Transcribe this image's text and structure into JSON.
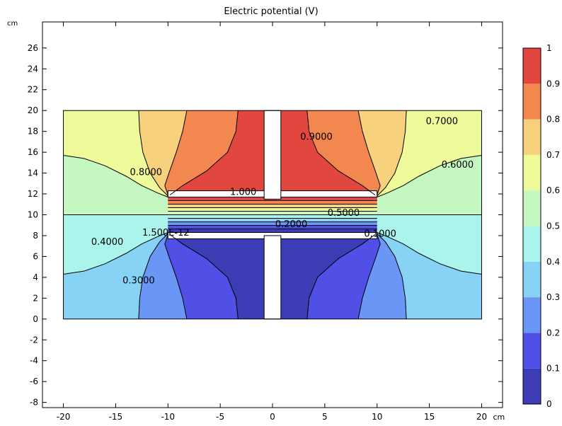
{
  "chart_data": {
    "type": "heatmap",
    "title": "Electric potential (V)",
    "x_unit": "cm",
    "y_unit": "cm",
    "xlim": [
      -22,
      22
    ],
    "ylim": [
      -8.5,
      28.5
    ],
    "x_ticks": [
      "-20",
      "-15",
      "-10",
      "-5",
      "0",
      "5",
      "10",
      "15",
      "20"
    ],
    "y_ticks": [
      "-8",
      "-6",
      "-4",
      "-2",
      "0",
      "2",
      "4",
      "6",
      "8",
      "10",
      "12",
      "14",
      "16",
      "18",
      "20",
      "22",
      "24",
      "26"
    ],
    "colorbar": {
      "range": [
        0,
        1
      ],
      "ticks": [
        "0",
        "0.1",
        "0.2",
        "0.3",
        "0.4",
        "0.5",
        "0.6",
        "0.7",
        "0.8",
        "0.9",
        "1"
      ],
      "bands": [
        {
          "from": 0.0,
          "to": 0.1,
          "color": "#3c3cb4"
        },
        {
          "from": 0.1,
          "to": 0.2,
          "color": "#5050e6"
        },
        {
          "from": 0.2,
          "to": 0.3,
          "color": "#6a96f6"
        },
        {
          "from": 0.3,
          "to": 0.4,
          "color": "#87d3f6"
        },
        {
          "from": 0.4,
          "to": 0.5,
          "color": "#abf4eb"
        },
        {
          "from": 0.5,
          "to": 0.6,
          "color": "#c5f7c0"
        },
        {
          "from": 0.6,
          "to": 0.7,
          "color": "#effa9a"
        },
        {
          "from": 0.7,
          "to": 0.8,
          "color": "#f7d17c"
        },
        {
          "from": 0.8,
          "to": 0.9,
          "color": "#f2874f"
        },
        {
          "from": 0.9,
          "to": 1.0,
          "color": "#e2473f"
        }
      ]
    },
    "contour_labels": [
      {
        "text": "0.7000",
        "x": 16.2,
        "y": 18.7
      },
      {
        "text": "0.9000",
        "x": 4.2,
        "y": 17.2
      },
      {
        "text": "0.6000",
        "x": 17.7,
        "y": 14.5
      },
      {
        "text": "0.8000",
        "x": -12.1,
        "y": 13.8
      },
      {
        "text": "1.000",
        "x": -2.8,
        "y": 11.9
      },
      {
        "text": "0.5000",
        "x": 6.8,
        "y": 9.9
      },
      {
        "text": "0.2000",
        "x": 1.8,
        "y": 8.8
      },
      {
        "text": "1.500E-12",
        "x": -10.2,
        "y": 8.0
      },
      {
        "text": "0.1000",
        "x": 10.3,
        "y": 7.9
      },
      {
        "text": "0.4000",
        "x": -15.8,
        "y": 7.1
      },
      {
        "text": "0.3000",
        "x": -12.8,
        "y": 3.4
      }
    ]
  }
}
